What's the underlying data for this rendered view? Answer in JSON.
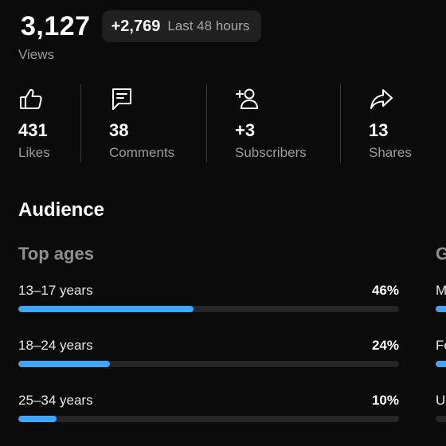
{
  "views": {
    "count": "3,127",
    "label": "Views",
    "delta": "+2,769",
    "delta_period": "Last 48 hours"
  },
  "stats": [
    {
      "icon": "thumbs-up-icon",
      "value": "431",
      "label": "Likes"
    },
    {
      "icon": "comment-icon",
      "value": "38",
      "label": "Comments"
    },
    {
      "icon": "add-person-icon",
      "value": "+3",
      "label": "Subscribers"
    },
    {
      "icon": "share-icon",
      "value": "13",
      "label": "Shares"
    }
  ],
  "audience": {
    "title": "Audience",
    "top_ages": {
      "title": "Top ages",
      "rows": [
        {
          "label": "13–17 years",
          "pct": "46%",
          "fraction": 0.46
        },
        {
          "label": "18–24 years",
          "pct": "24%",
          "fraction": 0.24
        },
        {
          "label": "25–34 years",
          "pct": "10%",
          "fraction": 0.1
        }
      ]
    },
    "gender": {
      "title_partial": "G",
      "rows_partial": [
        "M",
        "Fe",
        "U"
      ]
    }
  },
  "colors": {
    "background": "#0b0b0b",
    "bar_fill": "#3ea6ff",
    "bar_track": "#262626",
    "pill_bg": "#202020",
    "muted_text": "#9b9b9b"
  }
}
